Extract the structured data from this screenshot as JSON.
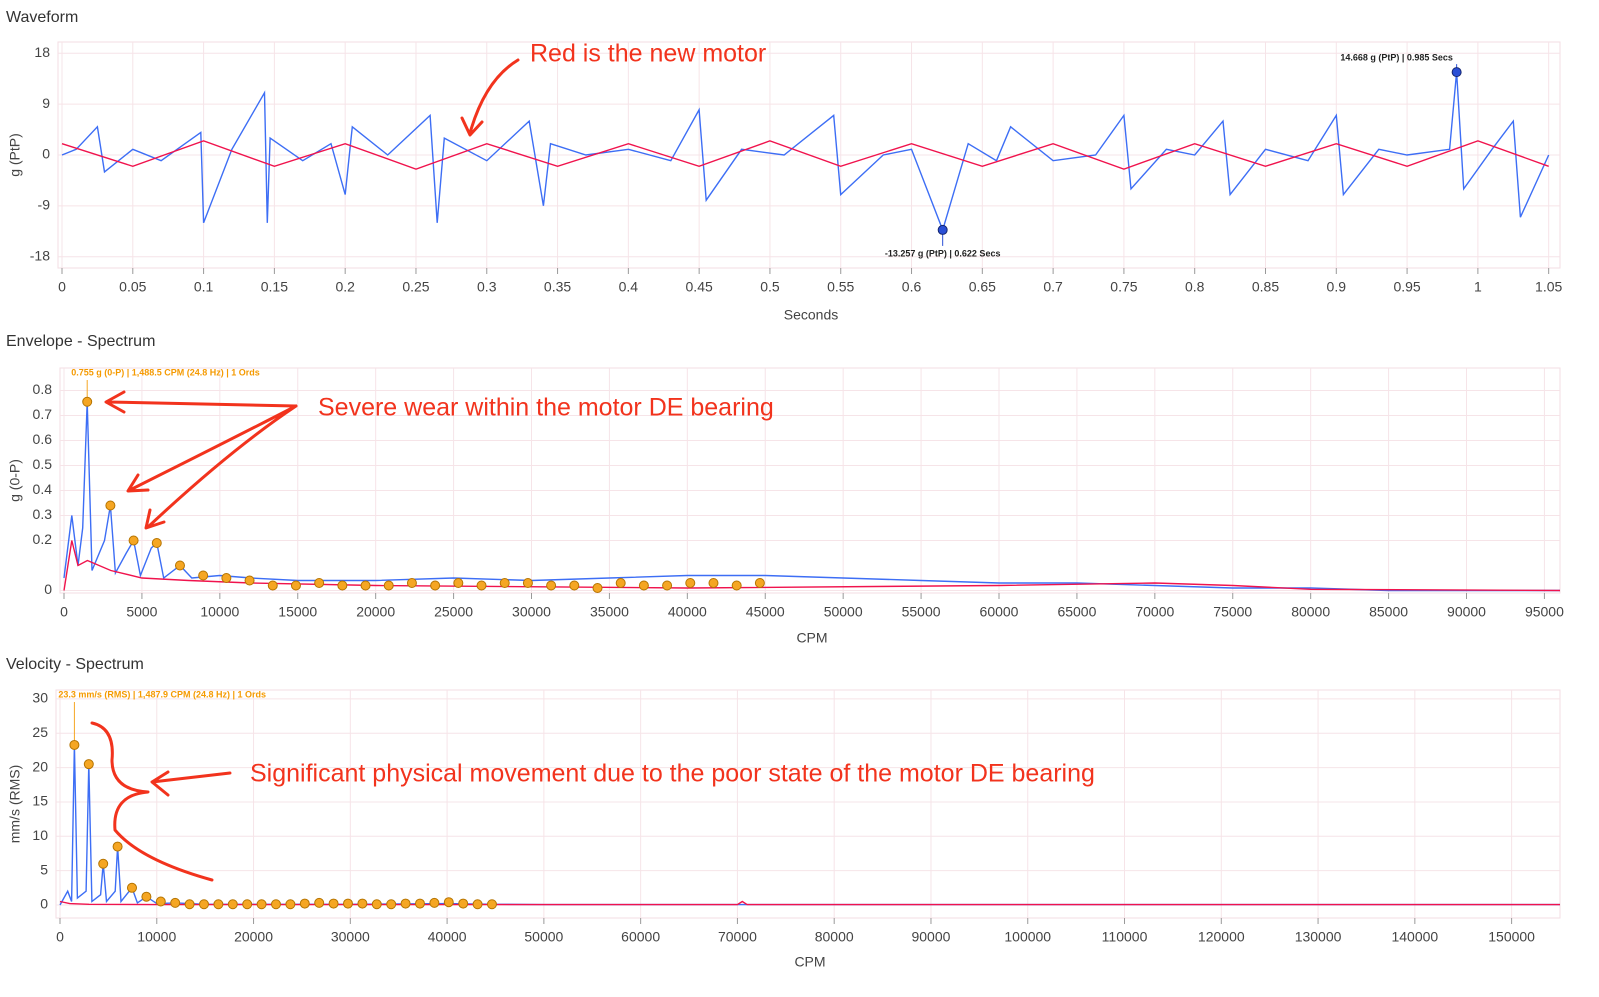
{
  "chart_data": [
    {
      "type": "line",
      "title": "Waveform",
      "x_label": "Seconds",
      "y_label": "g (PtP)",
      "xlim": [
        0,
        1.058
      ],
      "ylim": [
        -20,
        20
      ],
      "xticks": [
        0,
        0.05,
        0.1,
        0.15,
        0.2,
        0.25,
        0.3,
        0.35,
        0.4,
        0.45,
        0.5,
        0.55,
        0.6,
        0.65,
        0.7,
        0.75,
        0.8,
        0.85,
        0.9,
        0.95,
        1,
        1.05
      ],
      "yticks": [
        -18,
        -9,
        0,
        9,
        18
      ],
      "grid": true,
      "series": [
        {
          "mode": "line",
          "color": "#3d6ef5",
          "x": [
            0,
            0.01,
            0.025,
            0.03,
            0.05,
            0.07,
            0.098,
            0.1,
            0.12,
            0.143,
            0.145,
            0.147,
            0.17,
            0.19,
            0.2,
            0.205,
            0.23,
            0.26,
            0.265,
            0.27,
            0.3,
            0.33,
            0.34,
            0.345,
            0.37,
            0.4,
            0.43,
            0.45,
            0.455,
            0.48,
            0.51,
            0.545,
            0.55,
            0.58,
            0.6,
            0.622,
            0.64,
            0.66,
            0.67,
            0.7,
            0.73,
            0.75,
            0.755,
            0.78,
            0.8,
            0.82,
            0.825,
            0.85,
            0.88,
            0.9,
            0.905,
            0.93,
            0.95,
            0.98,
            0.985,
            0.99,
            1.01,
            1.025,
            1.03,
            1.05
          ],
          "values": [
            0,
            1,
            5,
            -3,
            1,
            -1,
            4,
            -12,
            1,
            11,
            -12,
            3,
            -1,
            2,
            -7,
            5,
            0,
            7,
            -12,
            3,
            -1,
            6,
            -9,
            2,
            0,
            1,
            -1,
            8,
            -8,
            1,
            0,
            7,
            -7,
            0,
            1,
            -13.257,
            2,
            -1,
            5,
            -1,
            0,
            7,
            -6,
            1,
            0,
            6,
            -7,
            1,
            -1,
            7,
            -7,
            1,
            0,
            1,
            14.668,
            -6,
            1,
            6,
            -11,
            0
          ]
        },
        {
          "mode": "line",
          "color": "#f0134d",
          "x": [
            0,
            0.05,
            0.1,
            0.15,
            0.2,
            0.25,
            0.3,
            0.35,
            0.4,
            0.45,
            0.5,
            0.55,
            0.6,
            0.65,
            0.7,
            0.75,
            0.8,
            0.85,
            0.9,
            0.95,
            1,
            1.05
          ],
          "values": [
            2,
            -2,
            2.5,
            -2,
            2,
            -2.5,
            2,
            -2,
            2,
            -2,
            2.5,
            -2,
            2,
            -2,
            2,
            -2.5,
            2,
            -2,
            2,
            -2,
            2.5,
            -2
          ]
        },
        {
          "mode": "points",
          "color": "#2a4fd6",
          "x": [
            0.622,
            0.985
          ],
          "values": [
            -13.257,
            14.668
          ],
          "value_labels": [
            "-13.257 g (PtP) | 0.622 Secs",
            "14.668 g (PtP) | 0.985 Secs"
          ]
        }
      ]
    },
    {
      "type": "line",
      "title": "Envelope - Spectrum",
      "x_label": "CPM",
      "y_label": "g (0-P)",
      "xlim": [
        0,
        96000
      ],
      "ylim": [
        -0.01,
        0.89
      ],
      "xticks": [
        0,
        5000,
        10000,
        15000,
        20000,
        25000,
        30000,
        35000,
        40000,
        45000,
        50000,
        55000,
        60000,
        65000,
        70000,
        75000,
        80000,
        85000,
        90000,
        95000
      ],
      "yticks": [
        0,
        0.2,
        0.3,
        0.4,
        0.5,
        0.6,
        0.7,
        0.8
      ],
      "grid": true,
      "peak_label": "0.755 g (0-P) | 1,488.5 CPM (24.8 Hz) | 1 Ords",
      "series": [
        {
          "mode": "line",
          "color": "#3d6ef5",
          "x": [
            0,
            500,
            900,
            1200,
            1488.5,
            1800,
            2600,
            2977,
            3300,
            4000,
            4465.5,
            4900,
            5600,
            5954,
            6400,
            7442.5,
            8200,
            10000,
            12000,
            15000,
            20000,
            25000,
            30000,
            35000,
            40000,
            45000,
            50000,
            55000,
            60000,
            65000,
            70000,
            75000,
            80000,
            85000,
            90000,
            96000
          ],
          "values": [
            0.05,
            0.3,
            0.1,
            0.25,
            0.755,
            0.08,
            0.2,
            0.34,
            0.07,
            0.15,
            0.2,
            0.06,
            0.17,
            0.19,
            0.05,
            0.1,
            0.05,
            0.06,
            0.05,
            0.04,
            0.04,
            0.05,
            0.04,
            0.05,
            0.06,
            0.06,
            0.05,
            0.04,
            0.03,
            0.03,
            0.02,
            0.01,
            0.01,
            0,
            0,
            0
          ]
        },
        {
          "mode": "line",
          "color": "#f0134d",
          "x": [
            0,
            500,
            900,
            1500,
            3000,
            5000,
            8000,
            12000,
            20000,
            40000,
            60000,
            70000,
            75000,
            80000,
            96000
          ],
          "values": [
            0,
            0.2,
            0.1,
            0.12,
            0.08,
            0.05,
            0.04,
            0.03,
            0.02,
            0.01,
            0.02,
            0.03,
            0.02,
            0.005,
            0
          ]
        },
        {
          "mode": "points",
          "color": "#f5a623",
          "x": [
            1488.5,
            2977,
            4465.5,
            5954,
            7442.5,
            8931,
            10419.5,
            11908,
            13396.5,
            14885,
            16373.5,
            17862,
            19350.5,
            20839,
            22327.5,
            23816,
            25304.5,
            26793,
            28281.5,
            29770,
            31258.5,
            32747,
            34235.5,
            35724,
            37212.5,
            38701,
            40189.5,
            41678,
            43166.5,
            44655
          ],
          "values": [
            0.755,
            0.34,
            0.2,
            0.19,
            0.1,
            0.06,
            0.05,
            0.04,
            0.02,
            0.02,
            0.03,
            0.02,
            0.02,
            0.02,
            0.03,
            0.02,
            0.03,
            0.02,
            0.03,
            0.03,
            0.02,
            0.02,
            0.01,
            0.03,
            0.02,
            0.02,
            0.03,
            0.03,
            0.02,
            0.03
          ]
        }
      ]
    },
    {
      "type": "line",
      "title": "Velocity - Spectrum",
      "x_label": "CPM",
      "y_label": "mm/s (RMS)",
      "xlim": [
        0,
        155000
      ],
      "ylim": [
        -1.9,
        31.3
      ],
      "xticks": [
        0,
        10000,
        20000,
        30000,
        40000,
        50000,
        60000,
        70000,
        80000,
        90000,
        100000,
        110000,
        120000,
        130000,
        140000,
        150000
      ],
      "yticks": [
        0,
        5,
        10,
        15,
        20,
        25,
        30
      ],
      "grid": true,
      "peak_label": "23.3 mm/s (RMS) | 1,487.9 CPM (24.8 Hz) | 1 Ords",
      "series": [
        {
          "mode": "line",
          "color": "#3d6ef5",
          "x": [
            0,
            800,
            1200,
            1487.9,
            1800,
            2700,
            2975.8,
            3300,
            4200,
            4463.7,
            4800,
            5700,
            5951.6,
            6300,
            7439.5,
            8000,
            8927.4,
            10000,
            12000,
            15000,
            20000,
            30000,
            40000,
            45000,
            50000,
            80000,
            120000,
            155000
          ],
          "values": [
            0,
            2,
            0.5,
            23.3,
            1,
            2,
            20.5,
            0.5,
            1.5,
            6,
            0.5,
            2,
            8.5,
            0.5,
            2.5,
            0.3,
            1.2,
            0.2,
            0.3,
            0.1,
            0.1,
            0.1,
            0.2,
            0.1,
            0.05,
            0.05,
            0.05,
            0.05
          ]
        },
        {
          "mode": "line",
          "color": "#f0134d",
          "x": [
            0,
            1000,
            3000,
            10000,
            70000,
            70500,
            71000,
            155000
          ],
          "values": [
            0.5,
            0.2,
            0.1,
            0.05,
            0.05,
            0.5,
            0.05,
            0.05
          ]
        },
        {
          "mode": "points",
          "color": "#f5a623",
          "x": [
            1487.9,
            2975.8,
            4463.7,
            5951.6,
            7439.5,
            8927.4,
            10415.3,
            11903.2,
            13391.1,
            14879,
            16366.9,
            17854.8,
            19342.7,
            20830.6,
            22318.5,
            23806.4,
            25294.3,
            26782.2,
            28270.1,
            29758,
            31245.9,
            32733.8,
            34221.7,
            35709.6,
            37197.5,
            38685.4,
            40173.3,
            41661.2,
            43149.1,
            44637
          ],
          "values": [
            23.3,
            20.5,
            6,
            8.5,
            2.5,
            1.2,
            0.5,
            0.3,
            0.1,
            0.1,
            0.1,
            0.1,
            0.1,
            0.1,
            0.1,
            0.1,
            0.2,
            0.3,
            0.2,
            0.2,
            0.2,
            0.1,
            0.1,
            0.2,
            0.2,
            0.3,
            0.4,
            0.2,
            0.1,
            0.1
          ]
        }
      ]
    }
  ],
  "annotations": [
    "Red is the new motor",
    "Severe wear within the motor DE bearing",
    "Significant physical movement due to the poor state of the motor DE bearing"
  ]
}
